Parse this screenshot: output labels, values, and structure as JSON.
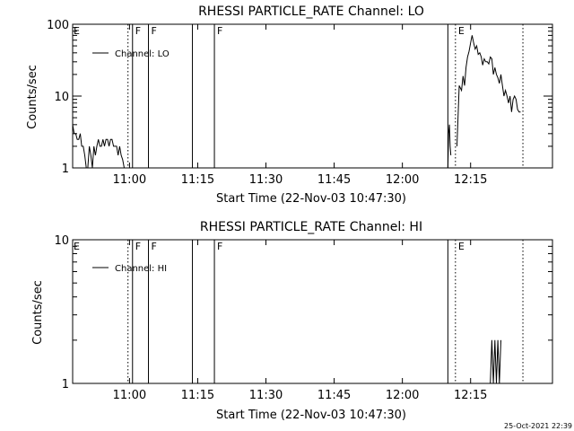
{
  "footer": {
    "timestamp": "25-Oct-2021 22:39"
  },
  "chart_data": [
    {
      "type": "line",
      "title": "RHESSI PARTICLE_RATE Channel: LO",
      "xlabel": "Start Time (22-Nov-03 10:47:30)",
      "ylabel": "Counts/sec",
      "yscale": "log",
      "ylim": [
        1,
        100
      ],
      "xlim": [
        "10:47:30",
        "12:33:00"
      ],
      "x_ticks": [
        "11:00",
        "11:15",
        "11:30",
        "11:45",
        "12:00",
        "12:15"
      ],
      "y_ticks": [
        "1",
        "10",
        "100"
      ],
      "legend": {
        "placement": "top-left",
        "entries": [
          "Channel: LO"
        ]
      },
      "series": [
        {
          "name": "Channel: LO",
          "segments": [
            {
              "x": [
                "10:47:30",
                "10:47:50",
                "10:48:10",
                "10:48:30",
                "10:48:50",
                "10:49:10",
                "10:49:30",
                "10:49:50",
                "10:50:10",
                "10:50:30",
                "10:50:50",
                "10:51:10",
                "10:51:30",
                "10:51:50",
                "10:52:10",
                "10:52:30",
                "10:52:50",
                "10:53:10",
                "10:53:30",
                "10:53:50",
                "10:54:10",
                "10:54:30",
                "10:54:50",
                "10:55:10",
                "10:55:30",
                "10:55:50",
                "10:56:10",
                "10:56:30",
                "10:56:50",
                "10:57:10",
                "10:57:30",
                "10:57:50",
                "10:58:10",
                "10:58:30",
                "10:58:50"
              ],
              "y": [
                4,
                3,
                3,
                2.5,
                2.5,
                3,
                2,
                2,
                1.5,
                1,
                1,
                2,
                1.5,
                1,
                2,
                1.5,
                2,
                2.5,
                2,
                2,
                2.5,
                2,
                2.5,
                2.5,
                2,
                2.5,
                2.5,
                2,
                2,
                2,
                1.5,
                2,
                1.5,
                1.3,
                1
              ]
            },
            {
              "x": [
                "12:10:00",
                "12:10:10",
                "12:10:20",
                "12:10:30",
                "12:10:40"
              ],
              "y": [
                1,
                3,
                4,
                2,
                1.5
              ]
            },
            {
              "x": [
                "12:12:00",
                "12:12:30",
                "12:13:00",
                "12:13:20",
                "12:13:40",
                "12:14:00",
                "12:14:20",
                "12:14:40",
                "12:15:00",
                "12:15:20",
                "12:15:40",
                "12:16:00",
                "12:16:20",
                "12:16:40",
                "12:17:00",
                "12:17:20",
                "12:17:40",
                "12:18:00",
                "12:18:20",
                "12:18:40",
                "12:19:00",
                "12:19:20",
                "12:19:40",
                "12:20:00",
                "12:20:20",
                "12:20:40",
                "12:21:00",
                "12:21:20",
                "12:21:40",
                "12:22:00",
                "12:22:20",
                "12:22:40",
                "12:23:00",
                "12:23:20",
                "12:23:40",
                "12:24:00",
                "12:24:20",
                "12:24:40",
                "12:25:00",
                "12:25:20",
                "12:25:40",
                "12:26:00"
              ],
              "y": [
                2,
                14,
                12,
                19,
                14,
                25,
                35,
                42,
                55,
                70,
                55,
                45,
                50,
                38,
                40,
                35,
                27,
                33,
                30,
                30,
                28,
                35,
                33,
                20,
                25,
                20,
                18,
                15,
                20,
                14,
                10,
                12,
                10,
                8,
                10,
                6,
                9,
                10,
                9,
                6.5,
                6,
                6
              ]
            }
          ]
        }
      ],
      "markers": [
        {
          "label": "E",
          "time": "10:47:30",
          "style": "solid"
        },
        {
          "label": "",
          "time": "10:59:40",
          "style": "dotted"
        },
        {
          "label": "F",
          "time": "11:00:40",
          "style": "solid"
        },
        {
          "label": "F",
          "time": "11:04:10",
          "style": "solid"
        },
        {
          "label": "",
          "time": "11:13:50",
          "style": "solid"
        },
        {
          "label": "F",
          "time": "11:18:40",
          "style": "solid"
        },
        {
          "label": "",
          "time": "12:10:00",
          "style": "solid"
        },
        {
          "label": "E",
          "time": "12:11:40",
          "style": "dotted"
        },
        {
          "label": "",
          "time": "12:26:30",
          "style": "dotted"
        }
      ]
    },
    {
      "type": "line",
      "title": "RHESSI PARTICLE_RATE Channel: HI",
      "xlabel": "Start Time (22-Nov-03 10:47:30)",
      "ylabel": "Counts/sec",
      "yscale": "log",
      "ylim": [
        1,
        10
      ],
      "xlim": [
        "10:47:30",
        "12:33:00"
      ],
      "x_ticks": [
        "11:00",
        "11:15",
        "11:30",
        "11:45",
        "12:00",
        "12:15"
      ],
      "y_ticks": [
        "1",
        "10"
      ],
      "legend": {
        "placement": "top-left",
        "entries": [
          "Channel: HI"
        ]
      },
      "series": [
        {
          "name": "Channel: HI",
          "segments": [
            {
              "x": [
                "12:19:20",
                "12:19:40",
                "12:20:00",
                "12:20:20",
                "12:20:40",
                "12:21:00",
                "12:21:20",
                "12:21:40"
              ],
              "y": [
                1,
                2,
                1,
                2,
                1,
                2,
                1,
                2
              ]
            }
          ]
        }
      ],
      "markers": [
        {
          "label": "E",
          "time": "10:47:30",
          "style": "solid"
        },
        {
          "label": "",
          "time": "10:59:40",
          "style": "dotted"
        },
        {
          "label": "F",
          "time": "11:00:40",
          "style": "solid"
        },
        {
          "label": "F",
          "time": "11:04:10",
          "style": "solid"
        },
        {
          "label": "",
          "time": "11:13:50",
          "style": "solid"
        },
        {
          "label": "F",
          "time": "11:18:40",
          "style": "solid"
        },
        {
          "label": "",
          "time": "12:10:00",
          "style": "solid"
        },
        {
          "label": "E",
          "time": "12:11:40",
          "style": "dotted"
        },
        {
          "label": "",
          "time": "12:26:30",
          "style": "dotted"
        }
      ]
    }
  ]
}
